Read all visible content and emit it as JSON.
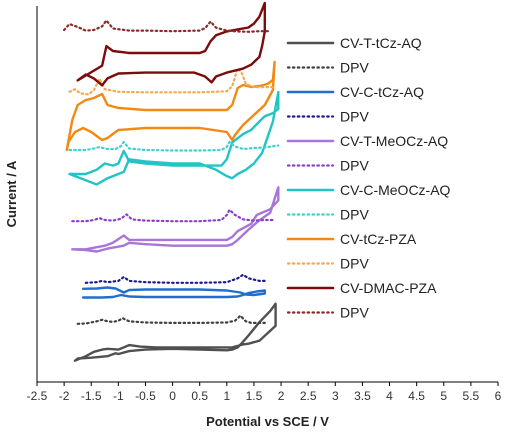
{
  "chart_data": {
    "type": "line",
    "title": "",
    "xlabel": "Potential vs SCE / V",
    "ylabel": "Current / A",
    "xlim": [
      -2.5,
      6
    ],
    "x_ticks": [
      "-2.5",
      "-2",
      "-1.5",
      "-1",
      "-0.5",
      "0",
      "0.5",
      "1",
      "1.5",
      "2",
      "2.5",
      "3",
      "3.5",
      "4",
      "4.5",
      "5",
      "5.5",
      "6"
    ],
    "y_ticks_shown": false,
    "grid": false,
    "legend_position": "right",
    "series": [
      {
        "name": "CV-T-tCz-AQ",
        "color": "#505050",
        "style": "solid",
        "x": [
          0.0,
          -0.5,
          -0.8,
          -1.0,
          -1.05,
          -1.2,
          -1.5,
          -1.75,
          -1.8,
          -1.6,
          -1.45,
          -1.3,
          -1.2,
          -1.0,
          -0.9,
          -0.8,
          -0.6,
          -0.3,
          0.0,
          0.5,
          1.0,
          1.1,
          1.2,
          1.3,
          1.4,
          1.6,
          1.75,
          1.9,
          1.9,
          1.8,
          1.6,
          1.4,
          1.28,
          1.2,
          1.1,
          1.0,
          0.5,
          0.0
        ],
        "y": [
          0.34,
          0.33,
          0.31,
          0.27,
          0.28,
          0.24,
          0.22,
          0.21,
          0.18,
          0.24,
          0.3,
          0.33,
          0.34,
          0.33,
          0.36,
          0.39,
          0.37,
          0.36,
          0.36,
          0.36,
          0.36,
          0.36,
          0.38,
          0.4,
          0.41,
          0.45,
          0.55,
          0.65,
          0.95,
          0.85,
          0.7,
          0.52,
          0.42,
          0.36,
          0.33,
          0.32,
          0.33,
          0.34
        ]
      },
      {
        "name": "DPV",
        "color": "#404040",
        "style": "dotted",
        "x": [
          -1.75,
          -1.6,
          -1.4,
          -1.3,
          -1.2,
          -1.1,
          -1.0,
          -0.92,
          -0.8,
          -0.5,
          0.0,
          0.5,
          1.0,
          1.15,
          1.25,
          1.35,
          1.45,
          1.7
        ],
        "y": [
          0.62,
          0.63,
          0.7,
          0.75,
          0.7,
          0.68,
          0.72,
          0.8,
          0.7,
          0.66,
          0.65,
          0.65,
          0.66,
          0.72,
          0.88,
          0.7,
          0.65,
          0.65
        ]
      },
      {
        "name": "CV-C-tCz-AQ",
        "color": "#1f6fd1",
        "style": "solid",
        "x": [
          -1.65,
          -1.3,
          -1.1,
          -0.95,
          -0.8,
          -0.5,
          0.0,
          0.5,
          1.0,
          1.2,
          1.3,
          1.4,
          1.55,
          1.7,
          1.7,
          1.5,
          1.35,
          1.25,
          1.0,
          0.5,
          0.0,
          -0.5,
          -0.8,
          -0.9,
          -1.05,
          -1.2,
          -1.4,
          -1.65
        ],
        "y": [
          0.1,
          0.1,
          0.12,
          0.2,
          0.14,
          0.12,
          0.12,
          0.12,
          0.12,
          0.14,
          0.2,
          0.28,
          0.34,
          0.38,
          0.26,
          0.2,
          0.22,
          0.3,
          0.38,
          0.42,
          0.42,
          0.42,
          0.4,
          0.3,
          0.46,
          0.5,
          0.46,
          0.45
        ]
      },
      {
        "name": "DPV",
        "color": "#1a1a8c",
        "style": "dotted",
        "x": [
          -1.6,
          -1.4,
          -1.3,
          -1.2,
          -1.0,
          -0.9,
          -0.8,
          -0.5,
          0.0,
          0.5,
          1.0,
          1.2,
          1.3,
          1.4,
          1.6,
          1.7
        ],
        "y": [
          0.6,
          0.62,
          0.66,
          0.62,
          0.66,
          0.78,
          0.66,
          0.62,
          0.6,
          0.6,
          0.62,
          0.74,
          0.85,
          0.74,
          0.66,
          0.66
        ]
      },
      {
        "name": "CV-T-MeOCz-AQ",
        "color": "#a876d8",
        "style": "solid",
        "x": [
          -1.85,
          -1.6,
          -1.4,
          -1.25,
          -1.1,
          -0.9,
          -0.8,
          -0.5,
          0.0,
          0.5,
          1.0,
          1.1,
          1.2,
          1.45,
          1.55,
          1.8,
          1.95,
          1.95,
          1.8,
          1.6,
          1.4,
          1.2,
          1.1,
          1.0,
          0.5,
          0.0,
          -0.5,
          -0.8,
          -0.9,
          -1.2,
          -1.4,
          -1.6,
          -1.85
        ],
        "y": [
          0.05,
          0.05,
          0.08,
          0.1,
          0.14,
          0.24,
          0.18,
          0.18,
          0.18,
          0.18,
          0.18,
          0.22,
          0.3,
          0.4,
          0.52,
          0.6,
          0.72,
          0.9,
          0.55,
          0.45,
          0.32,
          0.18,
          0.12,
          0.1,
          0.1,
          0.1,
          0.12,
          0.14,
          0.1,
          0.06,
          0.02,
          0.04,
          0.05
        ]
      },
      {
        "name": "DPV",
        "color": "#8d3dc8",
        "style": "dotted",
        "x": [
          -1.85,
          -1.6,
          -1.45,
          -1.35,
          -1.25,
          -1.1,
          -0.95,
          -0.85,
          -0.75,
          -0.5,
          0.0,
          0.5,
          0.9,
          1.0,
          1.05,
          1.15,
          1.3,
          1.5,
          1.7,
          1.85
        ],
        "y": [
          0.38,
          0.38,
          0.42,
          0.48,
          0.42,
          0.4,
          0.46,
          0.6,
          0.44,
          0.4,
          0.38,
          0.38,
          0.42,
          0.58,
          0.75,
          0.58,
          0.44,
          0.4,
          0.42,
          0.42
        ]
      },
      {
        "name": "CV-C-MeOCz-AQ",
        "color": "#22c4c4",
        "style": "solid",
        "x": [
          -1.9,
          -1.6,
          -1.4,
          -1.25,
          -1.1,
          -1.0,
          -0.9,
          -0.8,
          -0.5,
          0.0,
          0.5,
          0.9,
          1.0,
          1.1,
          1.3,
          1.45,
          1.6,
          1.7,
          1.85,
          1.95,
          1.95,
          1.85,
          1.75,
          1.65,
          1.5,
          1.35,
          1.2,
          1.1,
          1.0,
          0.8,
          0.5,
          0.0,
          -0.5,
          -0.8,
          -0.9,
          -1.0,
          -1.2,
          -1.4,
          -1.6,
          -1.9
        ],
        "y": [
          0.2,
          0.2,
          0.24,
          0.3,
          0.28,
          0.3,
          0.42,
          0.32,
          0.3,
          0.28,
          0.28,
          0.28,
          0.34,
          0.5,
          0.58,
          0.62,
          0.7,
          0.75,
          0.78,
          0.82,
          0.98,
          0.7,
          0.55,
          0.4,
          0.3,
          0.24,
          0.2,
          0.16,
          0.18,
          0.24,
          0.3,
          0.3,
          0.32,
          0.34,
          0.22,
          0.2,
          0.16,
          0.1,
          0.14,
          0.2
        ]
      },
      {
        "name": "DPV",
        "color": "#3fd0d0",
        "style": "dotted",
        "x": [
          -1.9,
          -1.6,
          -1.45,
          -1.35,
          -1.2,
          -1.05,
          -0.95,
          -0.9,
          -0.8,
          -0.5,
          0.0,
          0.5,
          0.9,
          1.0,
          1.05,
          1.15,
          1.3,
          1.5,
          1.7,
          1.95
        ],
        "y": [
          0.6,
          0.6,
          0.66,
          0.72,
          0.64,
          0.64,
          0.76,
          0.92,
          0.66,
          0.6,
          0.58,
          0.58,
          0.6,
          0.72,
          0.92,
          0.74,
          0.64,
          0.68,
          0.7,
          0.78
        ]
      },
      {
        "name": "CV-tCz-PZA",
        "color": "#f28a12",
        "style": "solid",
        "x": [
          -1.95,
          -1.85,
          -1.75,
          -1.6,
          -1.45,
          -1.3,
          -1.2,
          -1.0,
          -0.5,
          0.0,
          0.5,
          1.0,
          1.1,
          1.2,
          1.3,
          1.45,
          1.6,
          1.75,
          1.85,
          1.88,
          1.85,
          1.7,
          1.5,
          1.3,
          1.15,
          1.1,
          1.0,
          0.5,
          0.0,
          -0.5,
          -1.0,
          -1.2,
          -1.3,
          -1.5,
          -1.65,
          -1.8,
          -1.92,
          -1.95
        ],
        "y": [
          0.1,
          0.4,
          0.55,
          0.6,
          0.62,
          0.66,
          0.55,
          0.52,
          0.5,
          0.5,
          0.5,
          0.5,
          0.55,
          0.72,
          0.75,
          0.73,
          0.74,
          0.76,
          0.8,
          0.98,
          0.7,
          0.55,
          0.45,
          0.35,
          0.25,
          0.2,
          0.28,
          0.32,
          0.32,
          0.32,
          0.3,
          0.22,
          0.2,
          0.28,
          0.32,
          0.28,
          0.18,
          0.1
        ]
      },
      {
        "name": "DPV",
        "color": "#f6a84a",
        "style": "dotted",
        "x": [
          -1.9,
          -1.8,
          -1.7,
          -1.55,
          -1.45,
          -1.35,
          -1.25,
          -1.0,
          -0.5,
          0.0,
          0.5,
          1.0,
          1.1,
          1.2,
          1.28,
          1.35,
          1.5,
          1.7,
          1.85
        ],
        "y": [
          0.35,
          0.4,
          0.32,
          0.3,
          0.38,
          0.6,
          0.4,
          0.35,
          0.34,
          0.34,
          0.34,
          0.36,
          0.46,
          0.8,
          0.7,
          0.5,
          0.44,
          0.44,
          0.44
        ]
      },
      {
        "name": "CV-DMAC-PZA",
        "color": "#7a0c0c",
        "style": "solid",
        "x": [
          -1.75,
          -1.6,
          -1.45,
          -1.3,
          -1.22,
          -1.1,
          -0.8,
          -0.5,
          0.0,
          0.5,
          0.6,
          0.7,
          0.8,
          1.0,
          1.2,
          1.4,
          1.5,
          1.6,
          1.65,
          1.7,
          1.7,
          1.65,
          1.6,
          1.45,
          1.3,
          1.0,
          0.8,
          0.72,
          0.6,
          0.4,
          0.0,
          -0.5,
          -1.0,
          -1.2,
          -1.3,
          -1.45,
          -1.6,
          -1.75
        ],
        "y": [
          0.2,
          0.25,
          0.3,
          0.35,
          0.55,
          0.5,
          0.48,
          0.48,
          0.48,
          0.48,
          0.5,
          0.6,
          0.66,
          0.7,
          0.72,
          0.74,
          0.78,
          0.85,
          0.92,
          0.99,
          0.7,
          0.55,
          0.44,
          0.36,
          0.32,
          0.28,
          0.24,
          0.18,
          0.24,
          0.28,
          0.28,
          0.28,
          0.27,
          0.22,
          0.15,
          0.22,
          0.26,
          0.2
        ]
      },
      {
        "name": "DPV",
        "color": "#8b2a2a",
        "style": "dotted",
        "x": [
          -2.0,
          -1.9,
          -1.75,
          -1.6,
          -1.45,
          -1.3,
          -1.22,
          -1.1,
          -0.8,
          -0.5,
          0.0,
          0.5,
          0.6,
          0.7,
          0.8,
          1.0,
          1.2,
          1.4,
          1.6,
          1.8
        ],
        "y": [
          0.6,
          0.8,
          0.7,
          0.58,
          0.6,
          0.72,
          0.92,
          0.65,
          0.58,
          0.58,
          0.56,
          0.58,
          0.66,
          0.88,
          0.68,
          0.58,
          0.55,
          0.54,
          0.56,
          0.56
        ]
      }
    ]
  }
}
